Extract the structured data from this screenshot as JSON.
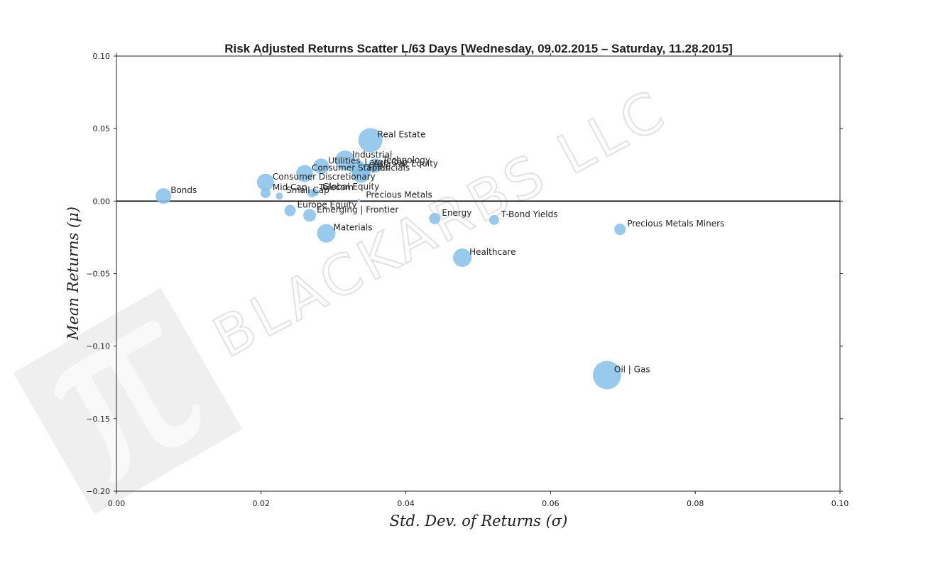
{
  "watermark": {
    "text": "BLACKARBS LLC",
    "logo": "pi-logo-icon"
  },
  "chart_data": {
    "type": "scatter",
    "title": "Risk Adjusted Returns Scatter L/63 Days [Wednesday, 09.02.2015 – Saturday, 11.28.2015]",
    "xlabel": "Std. Dev. of Returns  (σ)",
    "ylabel": "Mean Returns  (μ)",
    "xlim": [
      0.0,
      0.1
    ],
    "ylim": [
      -0.2,
      0.1
    ],
    "xticks": [
      0.0,
      0.02,
      0.04,
      0.06,
      0.08,
      0.1
    ],
    "xtick_labels": [
      "0.00",
      "0.02",
      "0.04",
      "0.06",
      "0.08",
      "0.10"
    ],
    "yticks": [
      0.1,
      0.05,
      0.0,
      -0.05,
      -0.1,
      -0.15,
      -0.2
    ],
    "ytick_labels": [
      "0.10",
      "0.05",
      "0.00",
      "−0.05",
      "−0.10",
      "−0.15",
      "−0.20"
    ],
    "zero_line": 0.0,
    "grid": false,
    "marker_color": "#85c1e9",
    "points": [
      {
        "label": "Bonds",
        "x": 0.0065,
        "y": 0.0035,
        "size": 11
      },
      {
        "label": "Mid Cap",
        "x": 0.0206,
        "y": 0.0055,
        "size": 7
      },
      {
        "label": "Small Cap",
        "x": 0.0225,
        "y": 0.0035,
        "size": 5
      },
      {
        "label": "Consumer Discretionary",
        "x": 0.0206,
        "y": 0.013,
        "size": 12
      },
      {
        "label": "Consumer Staples",
        "x": 0.026,
        "y": 0.019,
        "size": 12
      },
      {
        "label": "Utilities",
        "x": 0.0283,
        "y": 0.024,
        "size": 11
      },
      {
        "label": "Industrial",
        "x": 0.0316,
        "y": 0.028,
        "size": 14
      },
      {
        "label": "Large Cap",
        "x": 0.0333,
        "y": 0.023,
        "size": 11
      },
      {
        "label": "Financials",
        "x": 0.0338,
        "y": 0.019,
        "size": 13
      },
      {
        "label": "Technology",
        "x": 0.0358,
        "y": 0.0245,
        "size": 10
      },
      {
        "label": "Asia Pac Equity",
        "x": 0.0345,
        "y": 0.022,
        "size": 8
      },
      {
        "label": "Real Estate",
        "x": 0.0351,
        "y": 0.042,
        "size": 17
      },
      {
        "label": "Telecom",
        "x": 0.027,
        "y": 0.0055,
        "size": 6
      },
      {
        "label": "Global Equity",
        "x": 0.0275,
        "y": 0.006,
        "size": 5
      },
      {
        "label": "Precious Metals",
        "x": 0.0335,
        "y": 0.0005,
        "size": 2
      },
      {
        "label": "Europe Equity",
        "x": 0.024,
        "y": -0.0065,
        "size": 8
      },
      {
        "label": "Emerging | Frontier",
        "x": 0.0267,
        "y": -0.0098,
        "size": 9
      },
      {
        "label": "Materials",
        "x": 0.029,
        "y": -0.0222,
        "size": 13
      },
      {
        "label": "Energy",
        "x": 0.044,
        "y": -0.012,
        "size": 8
      },
      {
        "label": "T-Bond Yields",
        "x": 0.0522,
        "y": -0.013,
        "size": 7
      },
      {
        "label": "Precious Metals Miners",
        "x": 0.0696,
        "y": -0.0195,
        "size": 8
      },
      {
        "label": "Healthcare",
        "x": 0.0478,
        "y": -0.039,
        "size": 13
      },
      {
        "label": "Oil | Gas",
        "x": 0.0678,
        "y": -0.12,
        "size": 20
      }
    ]
  }
}
